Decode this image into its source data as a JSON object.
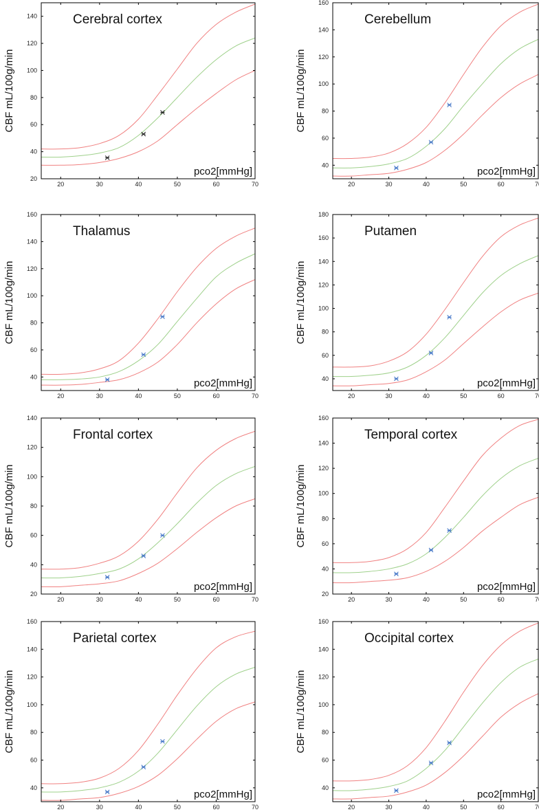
{
  "figure": {
    "colors": {
      "upper": "#f08080",
      "mean": "#9ed08a",
      "lower": "#f08080",
      "marker_dark": "#222222",
      "marker_blue": "#3a6fc4",
      "axis": "#000000"
    }
  },
  "chart_data": [
    {
      "type": "line",
      "title": "Cerebral cortex",
      "xlabel": "pco2[mmHg]",
      "ylabel": "CBF mL/100g/min",
      "xlim": [
        15,
        70
      ],
      "ylim": [
        20,
        150
      ],
      "xticks": [
        20,
        30,
        40,
        50,
        60,
        70
      ],
      "yticks": [
        20,
        40,
        60,
        80,
        100,
        120,
        140
      ],
      "x": [
        15,
        20,
        25,
        30,
        35,
        40,
        45,
        50,
        55,
        60,
        65,
        70
      ],
      "series": [
        {
          "name": "upper",
          "values": [
            42,
            42,
            43,
            46,
            52,
            64,
            82,
            101,
            120,
            134,
            143,
            149
          ]
        },
        {
          "name": "mean",
          "values": [
            36,
            36,
            37,
            39,
            43,
            52,
            65,
            80,
            95,
            108,
            118,
            124
          ]
        },
        {
          "name": "lower",
          "values": [
            30,
            30,
            30.5,
            32,
            35,
            40,
            48,
            60,
            72,
            83,
            93,
            100
          ]
        }
      ],
      "points": {
        "marker_color": "dark",
        "x": [
          32,
          41.3,
          46.2
        ],
        "y": [
          35.5,
          53,
          69
        ]
      }
    },
    {
      "type": "line",
      "title": "Cerebellum",
      "xlabel": "pco2[mmHg]",
      "ylabel": "CBF mL/100g/min",
      "xlim": [
        15,
        70
      ],
      "ylim": [
        30,
        160
      ],
      "xticks": [
        20,
        30,
        40,
        50,
        60,
        70
      ],
      "yticks": [
        40,
        60,
        80,
        100,
        120,
        140,
        160
      ],
      "x": [
        15,
        20,
        25,
        30,
        35,
        40,
        45,
        50,
        55,
        60,
        65,
        70
      ],
      "series": [
        {
          "name": "upper",
          "values": [
            45,
            45,
            46,
            49,
            56,
            68,
            86,
            107,
            127,
            143,
            153,
            159
          ]
        },
        {
          "name": "mean",
          "values": [
            38,
            38,
            39,
            41,
            45,
            54,
            67,
            84,
            100,
            115,
            126,
            133
          ]
        },
        {
          "name": "lower",
          "values": [
            32,
            32,
            33,
            34,
            37,
            42,
            51,
            63,
            77,
            90,
            100,
            107
          ]
        }
      ],
      "points": {
        "marker_color": "blue",
        "x": [
          32,
          41.3,
          46.2
        ],
        "y": [
          38,
          57,
          84.5
        ]
      }
    },
    {
      "type": "line",
      "title": "Thalamus",
      "xlabel": "pco2[mmHg]",
      "ylabel": "CBF mL/100g/min",
      "xlim": [
        15,
        70
      ],
      "ylim": [
        30,
        160
      ],
      "xticks": [
        20,
        30,
        40,
        50,
        60,
        70
      ],
      "yticks": [
        40,
        60,
        80,
        100,
        120,
        140,
        160
      ],
      "x": [
        15,
        20,
        25,
        30,
        35,
        40,
        45,
        50,
        55,
        60,
        65,
        70
      ],
      "series": [
        {
          "name": "upper",
          "values": [
            42,
            42,
            43,
            46,
            52,
            65,
            83,
            103,
            121,
            135,
            144,
            150
          ]
        },
        {
          "name": "mean",
          "values": [
            38,
            38,
            38.5,
            40,
            44,
            52,
            64,
            81,
            98,
            114,
            124,
            131
          ]
        },
        {
          "name": "lower",
          "values": [
            34,
            34,
            34.5,
            36,
            38,
            43,
            51,
            64,
            80,
            94,
            105,
            112
          ]
        }
      ],
      "points": {
        "marker_color": "blue",
        "x": [
          32,
          41.3,
          46.2
        ],
        "y": [
          38,
          56.5,
          84.5
        ]
      }
    },
    {
      "type": "line",
      "title": "Putamen",
      "xlabel": "pco2[mmHg]",
      "ylabel": "CBF mL/100g/min",
      "xlim": [
        15,
        70
      ],
      "ylim": [
        30,
        180
      ],
      "xticks": [
        20,
        30,
        40,
        50,
        60,
        70
      ],
      "yticks": [
        40,
        60,
        80,
        100,
        120,
        140,
        160,
        180
      ],
      "x": [
        15,
        20,
        25,
        30,
        35,
        40,
        45,
        50,
        55,
        60,
        65,
        70
      ],
      "series": [
        {
          "name": "upper",
          "values": [
            50,
            50,
            51,
            55,
            63,
            78,
            99,
            122,
            144,
            161,
            171,
            177
          ]
        },
        {
          "name": "mean",
          "values": [
            42,
            42,
            43,
            45,
            50,
            60,
            75,
            94,
            113,
            128,
            138,
            145
          ]
        },
        {
          "name": "lower",
          "values": [
            34,
            34,
            35,
            36,
            39,
            46,
            56,
            70,
            84,
            97,
            107,
            113
          ]
        }
      ],
      "points": {
        "marker_color": "blue",
        "x": [
          32,
          41.3,
          46.2
        ],
        "y": [
          40,
          62,
          92.5
        ]
      }
    },
    {
      "type": "line",
      "title": "Frontal cortex",
      "xlabel": "pco2[mmHg]",
      "ylabel": "CBF mL/100g/min",
      "xlim": [
        15,
        70
      ],
      "ylim": [
        20,
        140
      ],
      "xticks": [
        20,
        30,
        40,
        50,
        60,
        70
      ],
      "yticks": [
        20,
        40,
        60,
        80,
        100,
        120,
        140
      ],
      "x": [
        15,
        20,
        25,
        30,
        35,
        40,
        45,
        50,
        55,
        60,
        65,
        70
      ],
      "series": [
        {
          "name": "upper",
          "values": [
            37,
            37,
            38,
            41,
            46,
            56,
            71,
            89,
            106,
            118,
            126,
            131
          ]
        },
        {
          "name": "mean",
          "values": [
            31,
            31,
            32,
            34,
            37,
            44,
            55,
            68,
            82,
            94,
            102,
            107
          ]
        },
        {
          "name": "lower",
          "values": [
            25,
            25,
            26,
            27,
            29,
            34,
            41,
            51,
            62,
            72,
            80,
            85
          ]
        }
      ],
      "points": {
        "marker_color": "blue",
        "x": [
          32,
          41.3,
          46.2
        ],
        "y": [
          31.5,
          46,
          60
        ]
      }
    },
    {
      "type": "line",
      "title": "Temporal cortex",
      "xlabel": "pco2[mmHg]",
      "ylabel": "CBF mL/100g/min",
      "xlim": [
        15,
        70
      ],
      "ylim": [
        20,
        160
      ],
      "xticks": [
        20,
        30,
        40,
        50,
        60,
        70
      ],
      "yticks": [
        20,
        40,
        60,
        80,
        100,
        120,
        140,
        160
      ],
      "x": [
        15,
        20,
        25,
        30,
        35,
        40,
        45,
        50,
        55,
        60,
        65,
        70
      ],
      "series": [
        {
          "name": "upper",
          "values": [
            45,
            45,
            46,
            49,
            56,
            69,
            89,
            110,
            130,
            144,
            154,
            159
          ]
        },
        {
          "name": "mean",
          "values": [
            37,
            37,
            38,
            40,
            44,
            52,
            65,
            81,
            98,
            112,
            122,
            128
          ]
        },
        {
          "name": "lower",
          "values": [
            29,
            29,
            30,
            31,
            33,
            38,
            46,
            57,
            70,
            81,
            91,
            97
          ]
        }
      ],
      "points": {
        "marker_color": "blue",
        "x": [
          32,
          41.3,
          46.2
        ],
        "y": [
          36,
          55,
          70.5
        ]
      }
    },
    {
      "type": "line",
      "title": "Parietal cortex",
      "xlabel": "pco2[mmHg]",
      "ylabel": "CBF mL/100g/min",
      "xlim": [
        15,
        70
      ],
      "ylim": [
        30,
        160
      ],
      "xticks": [
        20,
        30,
        40,
        50,
        60,
        70
      ],
      "yticks": [
        40,
        60,
        80,
        100,
        120,
        140,
        160
      ],
      "x": [
        15,
        20,
        25,
        30,
        35,
        40,
        45,
        50,
        55,
        60,
        65,
        70
      ],
      "series": [
        {
          "name": "upper",
          "values": [
            43,
            43,
            44,
            47,
            54,
            67,
            86,
            107,
            126,
            141,
            149,
            153
          ]
        },
        {
          "name": "mean",
          "values": [
            37,
            37,
            38,
            40,
            44,
            52,
            65,
            82,
            99,
            113,
            122,
            127
          ]
        },
        {
          "name": "lower",
          "values": [
            31,
            31,
            32,
            33,
            36,
            41,
            49,
            61,
            75,
            88,
            97,
            102
          ]
        }
      ],
      "points": {
        "marker_color": "blue",
        "x": [
          32,
          41.3,
          46.2
        ],
        "y": [
          37,
          55,
          73.5
        ]
      }
    },
    {
      "type": "line",
      "title": "Occipital cortex",
      "xlabel": "pco2[mmHg]",
      "ylabel": "CBF mL/100g/min",
      "xlim": [
        15,
        70
      ],
      "ylim": [
        30,
        160
      ],
      "xticks": [
        20,
        30,
        40,
        50,
        60,
        70
      ],
      "yticks": [
        40,
        60,
        80,
        100,
        120,
        140,
        160
      ],
      "x": [
        15,
        20,
        25,
        30,
        35,
        40,
        45,
        50,
        55,
        60,
        65,
        70
      ],
      "series": [
        {
          "name": "upper",
          "values": [
            45,
            45,
            46,
            49,
            56,
            69,
            88,
            109,
            128,
            143,
            153,
            159
          ]
        },
        {
          "name": "mean",
          "values": [
            38,
            38,
            39,
            41,
            45,
            54,
            67,
            84,
            101,
            116,
            127,
            133
          ]
        },
        {
          "name": "lower",
          "values": [
            32,
            32,
            33,
            34,
            37,
            42,
            51,
            63,
            77,
            91,
            101,
            108
          ]
        }
      ],
      "points": {
        "marker_color": "blue",
        "x": [
          32,
          41.3,
          46.2
        ],
        "y": [
          38,
          58,
          72.5
        ]
      }
    }
  ]
}
